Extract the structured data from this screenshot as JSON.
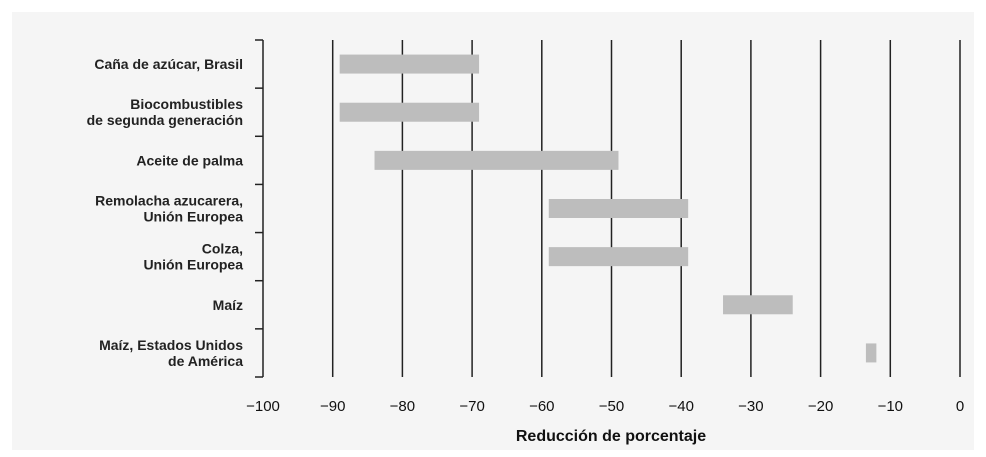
{
  "chart_data": {
    "type": "bar",
    "orientation": "horizontal",
    "subtype": "range",
    "xlabel": "Reducción de porcentaje",
    "xlim": [
      -100,
      0
    ],
    "xticks": [
      -100,
      -90,
      -80,
      -70,
      -60,
      -50,
      -40,
      -30,
      -20,
      -10,
      0
    ],
    "xtick_labels": [
      "−100",
      "−90",
      "−80",
      "−70",
      "−60",
      "−50",
      "−40",
      "−30",
      "−20",
      "−10",
      "0"
    ],
    "grid": "vertical",
    "bar_color": "#bdbdbd",
    "categories": [
      {
        "lines": [
          "Caña de azúcar, Brasil"
        ],
        "min": -89,
        "max": -69
      },
      {
        "lines": [
          "Biocombustibles",
          "de segunda generación"
        ],
        "min": -89,
        "max": -69
      },
      {
        "lines": [
          "Aceite de palma"
        ],
        "min": -84,
        "max": -49
      },
      {
        "lines": [
          "Remolacha azucarera,",
          "Unión Europea"
        ],
        "min": -59,
        "max": -39
      },
      {
        "lines": [
          "Colza,",
          "Unión Europea"
        ],
        "min": -59,
        "max": -39
      },
      {
        "lines": [
          "Maíz"
        ],
        "min": -34,
        "max": -24
      },
      {
        "lines": [
          "Maíz, Estados Unidos",
          "de América"
        ],
        "min": -13.5,
        "max": -12
      }
    ]
  }
}
